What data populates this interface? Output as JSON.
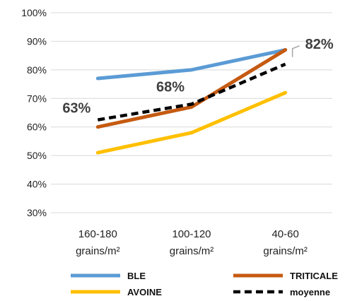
{
  "chart_data": {
    "type": "line",
    "categories": [
      [
        "160-180",
        "grains/m²"
      ],
      [
        "100-120",
        "grains/m²"
      ],
      [
        "40-60",
        "grains/m²"
      ]
    ],
    "ylim": [
      30,
      100
    ],
    "yticks": [
      30,
      40,
      50,
      60,
      70,
      80,
      90,
      100
    ],
    "ytick_labels": [
      "30%",
      "40%",
      "50%",
      "60%",
      "70%",
      "80%",
      "90%",
      "100%"
    ],
    "grid": true,
    "legend_position": "bottom",
    "series": [
      {
        "name": "BLE",
        "values": [
          77,
          80,
          87
        ],
        "color": "#5B9BD5",
        "dash": false
      },
      {
        "name": "TRITICALE",
        "values": [
          60,
          67,
          87
        ],
        "color": "#C55A11",
        "dash": false
      },
      {
        "name": "AVOINE",
        "values": [
          51,
          58,
          72
        ],
        "color": "#FFC000",
        "dash": false
      },
      {
        "name": "moyenne",
        "values": [
          62.5,
          68,
          82
        ],
        "color": "#000000",
        "dash": true
      }
    ],
    "data_labels": [
      {
        "series": "moyenne",
        "index": 0,
        "text": "63%"
      },
      {
        "series": "moyenne",
        "index": 1,
        "text": "68%"
      },
      {
        "series": "moyenne",
        "index": 2,
        "text": "82%"
      }
    ]
  }
}
